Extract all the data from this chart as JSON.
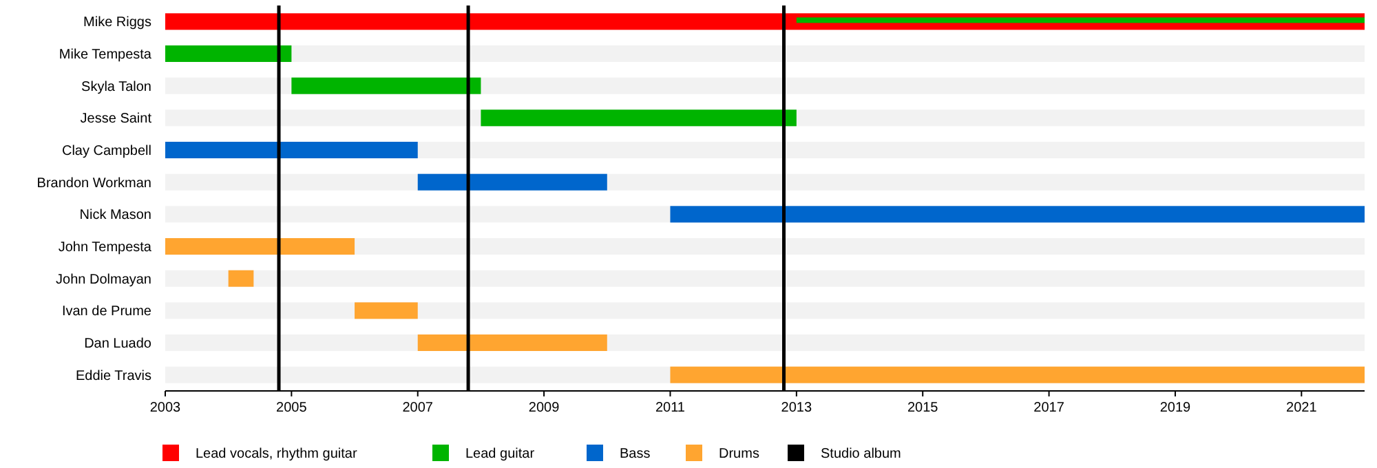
{
  "chart_data": {
    "type": "bar",
    "orientation": "horizontal",
    "categories": [
      "Mike Riggs",
      "Mike Tempesta",
      "Skyla Talon",
      "Jesse Saint",
      "Clay Campbell",
      "Brandon Workman",
      "Nick Mason",
      "John Tempesta",
      "John Dolmayan",
      "Ivan de Prume",
      "Dan Luado",
      "Eddie Travis"
    ],
    "series": [
      {
        "name": "Lead vocals, rhythm guitar",
        "color": "#ff0000",
        "base": [
          2003,
          null,
          null,
          null,
          null,
          null,
          null,
          null,
          null,
          null,
          null,
          null
        ],
        "values": [
          19,
          null,
          null,
          null,
          null,
          null,
          null,
          null,
          null,
          null,
          null,
          null
        ]
      },
      {
        "name": "Lead guitar",
        "color": "#00b400",
        "base": [
          2013,
          2003,
          2005,
          2008,
          null,
          null,
          null,
          null,
          null,
          null,
          null,
          null
        ],
        "values": [
          9,
          2,
          3,
          5,
          null,
          null,
          null,
          null,
          null,
          null,
          null,
          null
        ]
      },
      {
        "name": "Bass",
        "color": "#0066cc",
        "base": [
          null,
          null,
          null,
          null,
          2003,
          2007,
          2011,
          null,
          null,
          null,
          null,
          null
        ],
        "values": [
          null,
          null,
          null,
          null,
          4,
          3,
          11,
          null,
          null,
          null,
          null,
          null
        ]
      },
      {
        "name": "Drums",
        "color": "#ffa530",
        "base": [
          null,
          null,
          null,
          null,
          null,
          null,
          null,
          2003,
          2004,
          2006,
          2007,
          2011
        ],
        "values": [
          null,
          null,
          null,
          null,
          null,
          null,
          null,
          3,
          0.4,
          1,
          3,
          11
        ]
      }
    ],
    "xlim": [
      2003,
      2022
    ],
    "xticks": [
      2003,
      2005,
      2007,
      2009,
      2011,
      2013,
      2015,
      2017,
      2019,
      2021
    ],
    "ref_lines": [
      {
        "axis": "x",
        "value": 2004.8,
        "label": "Studio album",
        "color": "#000000"
      },
      {
        "axis": "x",
        "value": 2007.8,
        "color": "#000000"
      },
      {
        "axis": "x",
        "value": 2012.8,
        "color": "#000000"
      }
    ],
    "legend": "bottom"
  }
}
